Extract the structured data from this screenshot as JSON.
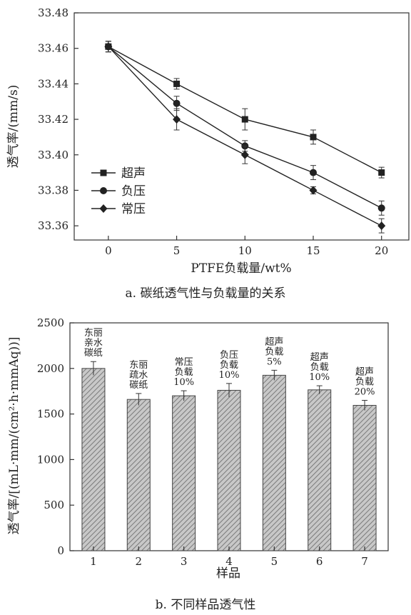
{
  "chart_data": [
    {
      "type": "line",
      "caption": "a. 碳纸透气性与负载量的关系",
      "title": "",
      "xlabel": "PTFE负载量/wt%",
      "ylabel": "透气率/(mm/s)",
      "x": [
        0,
        5,
        10,
        15,
        20
      ],
      "xlim": [
        -2.5,
        22
      ],
      "ylim": [
        33.352,
        33.48
      ],
      "xticks": [
        "0",
        "5",
        "10",
        "15",
        "20"
      ],
      "yticks": [
        "33.36",
        "33.38",
        "33.40",
        "33.42",
        "33.44",
        "33.46",
        "33.48"
      ],
      "legend_position": "left",
      "series": [
        {
          "name": "超声",
          "marker": "square",
          "values": [
            33.461,
            33.44,
            33.42,
            33.41,
            33.39
          ],
          "errors": [
            0.003,
            0.003,
            0.006,
            0.004,
            0.003
          ]
        },
        {
          "name": "负压",
          "marker": "circle",
          "values": [
            33.461,
            33.429,
            33.405,
            33.39,
            33.37
          ],
          "errors": [
            0.003,
            0.004,
            0.003,
            0.004,
            0.004
          ]
        },
        {
          "name": "常压",
          "marker": "diamond",
          "values": [
            33.461,
            33.42,
            33.4,
            33.38,
            33.36
          ],
          "errors": [
            0.003,
            0.006,
            0.005,
            0.002,
            0.004
          ]
        }
      ]
    },
    {
      "type": "bar",
      "caption": "b. 不同样品透气性",
      "title": "",
      "xlabel": "样品",
      "ylabel": "透气率/[(mL·mm/(cm²·h·mmAq))]",
      "categories": [
        "1",
        "2",
        "3",
        "4",
        "5",
        "6",
        "7"
      ],
      "values": [
        2000,
        1660,
        1700,
        1760,
        1925,
        1765,
        1595
      ],
      "errors": [
        75,
        65,
        55,
        75,
        55,
        45,
        55
      ],
      "ylim": [
        0,
        2500
      ],
      "yticks": [
        "0",
        "500",
        "1000",
        "1500",
        "2000",
        "2500"
      ],
      "bar_labels": [
        [
          "东丽",
          "亲水",
          "碳纸"
        ],
        [
          "东丽",
          "疏水",
          "碳纸"
        ],
        [
          "常压",
          "负载",
          "10%"
        ],
        [
          "负压",
          "负载",
          "10%"
        ],
        [
          "超声",
          "负载",
          "5%"
        ],
        [
          "超声",
          "负载",
          "10%"
        ],
        [
          "超声",
          "负载",
          "20%"
        ]
      ]
    }
  ]
}
